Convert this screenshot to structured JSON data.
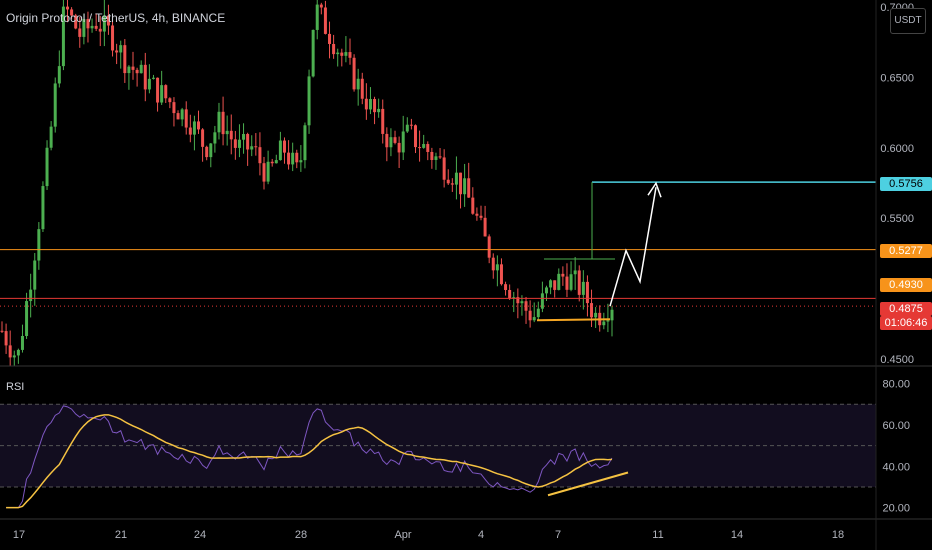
{
  "header": {
    "title": "Origin Protocol / TetherUS, 4h, BINANCE",
    "currency": "USDT"
  },
  "colors": {
    "background": "#000000",
    "up": "#26a69a",
    "up_bright": "#4caf50",
    "down": "#ef5350",
    "resistance_orange": "#f7931a",
    "support_red": "#e53935",
    "target_cyan": "#4dd0e1",
    "rsi_line": "#7e57c2",
    "rsi_ma": "#f5c242",
    "pattern_green": "#4caf50",
    "neckline_yellow": "#f5a623",
    "projection_white": "#ffffff"
  },
  "price_axis": {
    "ticks": [
      "0.7000",
      "0.6500",
      "0.6000",
      "0.5500",
      "0.4500"
    ]
  },
  "price_labels": {
    "target": "0.5756",
    "resistance": "0.5277",
    "level_orange": "0.4930",
    "current": "0.4875",
    "countdown": "01:06:46"
  },
  "rsi": {
    "label": "RSI",
    "ticks": [
      "80.00",
      "60.00",
      "40.00",
      "20.00"
    ]
  },
  "time_axis": {
    "ticks": [
      "17",
      "21",
      "24",
      "28",
      "Apr",
      "4",
      "7",
      "11",
      "14",
      "18"
    ]
  },
  "chart_data": {
    "type": "candlestick",
    "title": "Origin Protocol / TetherUS, 4h, BINANCE",
    "interval": "4h",
    "ylim": [
      0.445,
      0.705
    ],
    "levels": {
      "target": 0.5756,
      "resistance": 0.5277,
      "support": 0.493,
      "current_price": 0.4875
    },
    "rsi_ylim": [
      15,
      88
    ],
    "rsi_bands": [
      70,
      50,
      30
    ],
    "price_path_closes": [
      0.47,
      0.45,
      0.52,
      0.6,
      0.7,
      0.68,
      0.69,
      0.68,
      0.66,
      0.65,
      0.64,
      0.63,
      0.62,
      0.6,
      0.62,
      0.6,
      0.6,
      0.58,
      0.6,
      0.58,
      0.7,
      0.68,
      0.66,
      0.64,
      0.62,
      0.6,
      0.61,
      0.6,
      0.59,
      0.58,
      0.56,
      0.53,
      0.51,
      0.49,
      0.48,
      0.5,
      0.51,
      0.5,
      0.48,
      0.49
    ],
    "projection": [
      0.4875,
      0.527,
      0.505,
      0.572
    ]
  }
}
